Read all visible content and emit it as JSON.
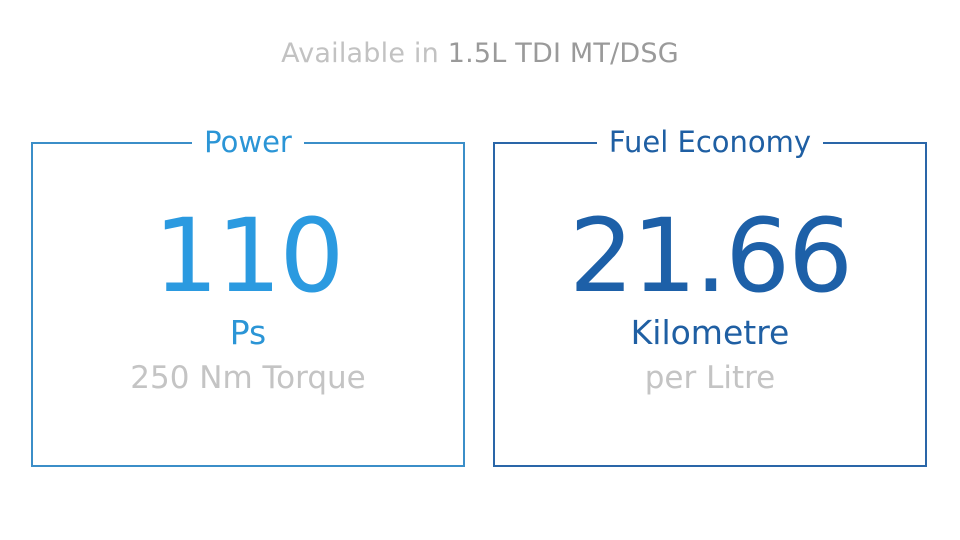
{
  "headline": {
    "prefix": "Available in",
    "engine": "1.5L TDI MT/DSG"
  },
  "cards": [
    {
      "title": "Power",
      "value": "110",
      "unit": "Ps",
      "sub": "250 Nm Torque"
    },
    {
      "title": "Fuel Economy",
      "value": "21.66",
      "unit": "Kilometre",
      "sub": "per Litre"
    }
  ],
  "colors": {
    "power_blue": "#2b9ae0",
    "economy_blue": "#1d60a8",
    "muted_grey": "#c4c4c4"
  }
}
